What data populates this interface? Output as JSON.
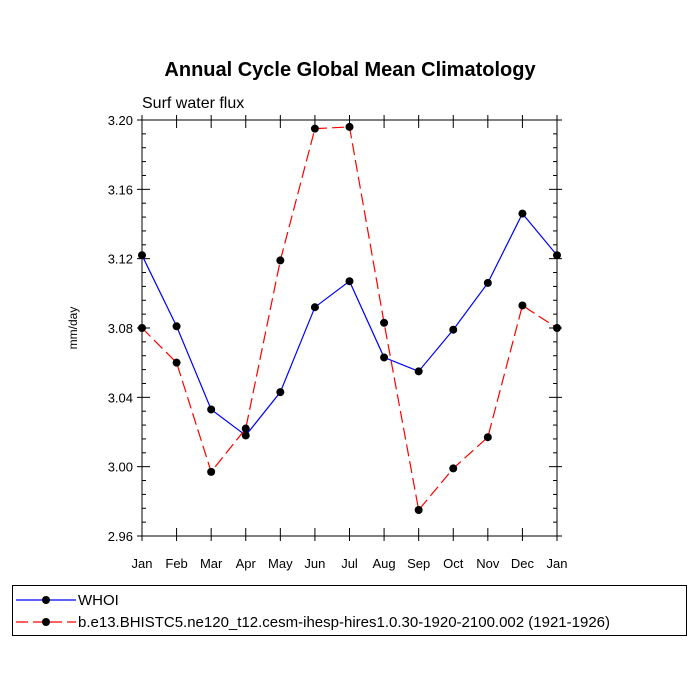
{
  "chart_data": {
    "type": "line",
    "title": "Annual Cycle Global Mean Climatology",
    "subtitle": "Surf water flux",
    "xlabel": "",
    "ylabel": "mm/day",
    "categories": [
      "Jan",
      "Feb",
      "Mar",
      "Apr",
      "May",
      "Jun",
      "Jul",
      "Aug",
      "Sep",
      "Oct",
      "Nov",
      "Dec",
      "Jan"
    ],
    "ylim": [
      2.96,
      3.2
    ],
    "yticks": [
      "2.96",
      "3.00",
      "3.04",
      "3.08",
      "3.12",
      "3.16",
      "3.20"
    ],
    "grid": false,
    "legend_position": "bottom",
    "series": [
      {
        "name": "WHOI",
        "color": "#0000ff",
        "line_style": "solid",
        "marker": "filled-circle",
        "values": [
          3.122,
          3.081,
          3.033,
          3.018,
          3.043,
          3.092,
          3.107,
          3.063,
          3.055,
          3.079,
          3.106,
          3.146,
          3.122
        ]
      },
      {
        "name": "b.e13.BHISTC5.ne120_t12.cesm-ihesp-hires1.0.30-1920-2100.002 (1921-1926)",
        "color": "#ff0000",
        "line_style": "dashed",
        "marker": "filled-circle",
        "values": [
          3.08,
          3.06,
          2.997,
          3.022,
          3.119,
          3.195,
          3.196,
          3.083,
          2.975,
          2.999,
          3.017,
          3.093,
          3.08
        ]
      }
    ]
  }
}
